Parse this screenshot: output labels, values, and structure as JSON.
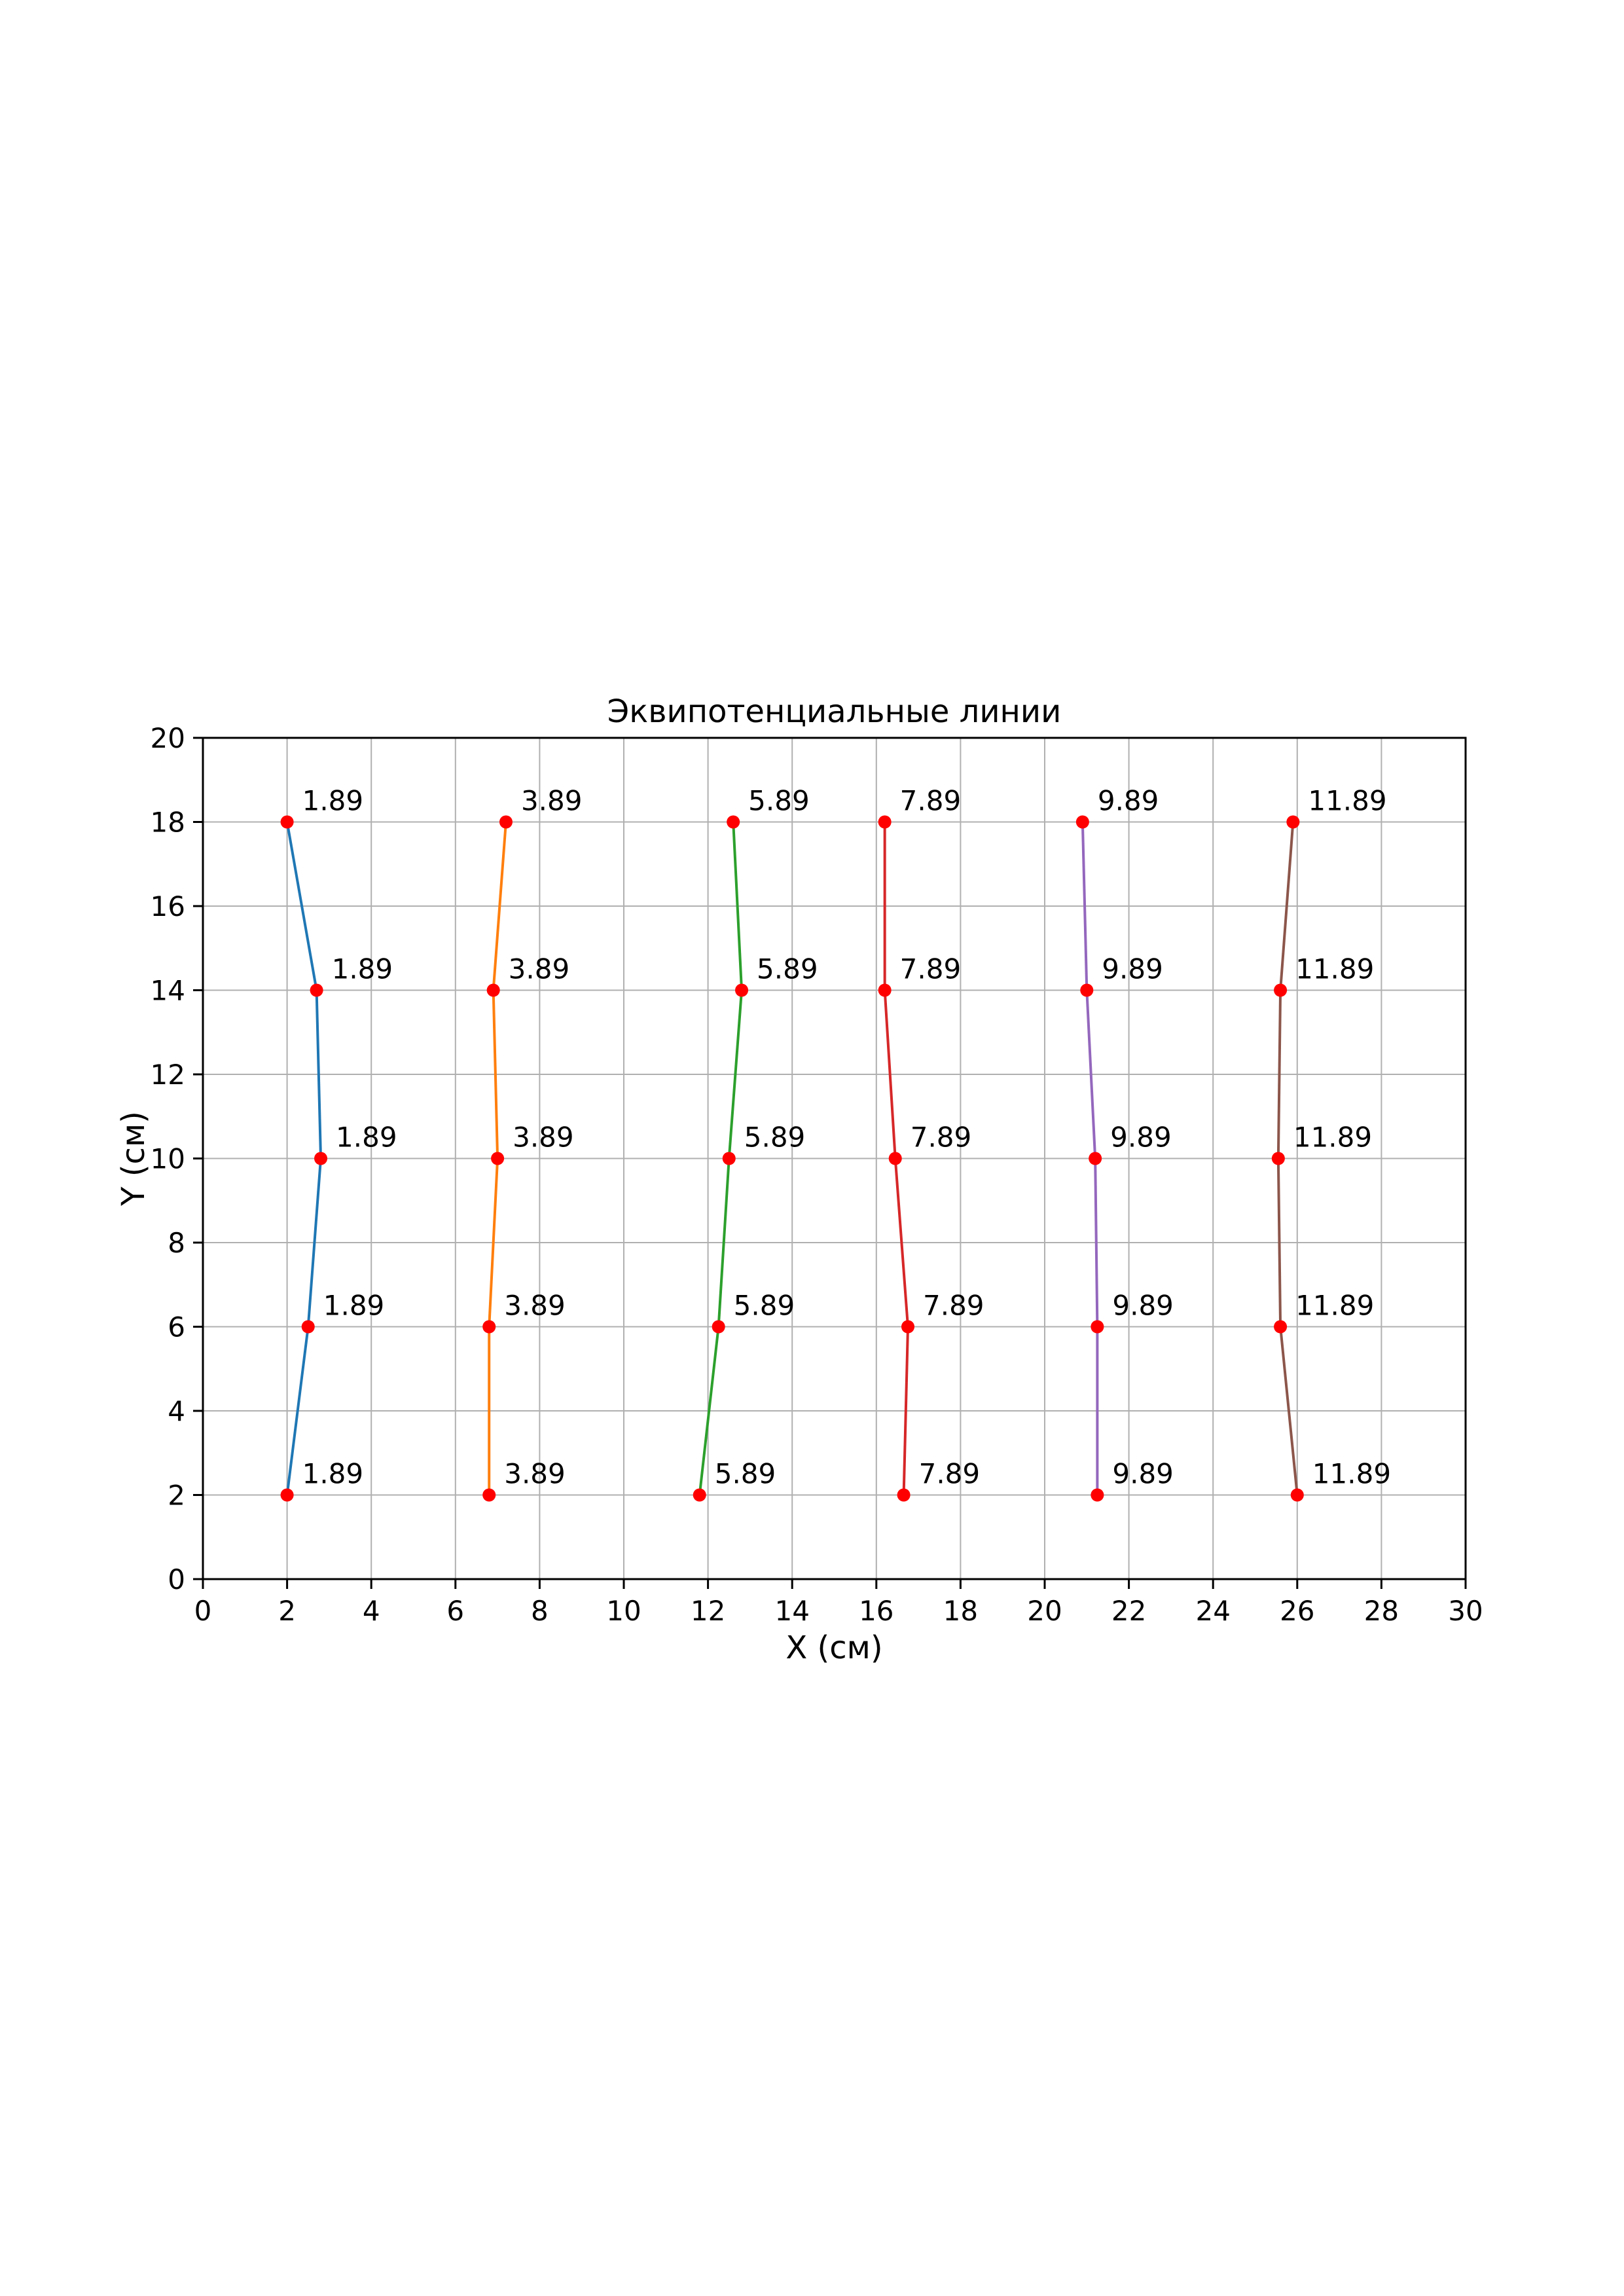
{
  "page": {
    "background": "#ffffff"
  },
  "chart_data": {
    "type": "line",
    "title": "Эквипотенциальные линии",
    "xlabel": "X (см)",
    "ylabel": "Y (см)",
    "xlim": [
      0,
      30
    ],
    "ylim": [
      0,
      20
    ],
    "xticks": [
      0,
      2,
      4,
      6,
      8,
      10,
      12,
      14,
      16,
      18,
      20,
      22,
      24,
      26,
      28,
      30
    ],
    "yticks": [
      0,
      2,
      4,
      6,
      8,
      10,
      12,
      14,
      16,
      18,
      20
    ],
    "grid": true,
    "grid_color": "#b0b0b0",
    "spine_color": "#000000",
    "marker_color": "#ff0000",
    "legend": "none",
    "annotate_each_point": true,
    "series": [
      {
        "label": "1.89",
        "color": "#1f77b4",
        "x": [
          2.0,
          2.7,
          2.8,
          2.5,
          2.0
        ],
        "y": [
          18,
          14,
          10,
          6,
          2
        ]
      },
      {
        "label": "3.89",
        "color": "#ff7f0e",
        "x": [
          7.2,
          6.9,
          7.0,
          6.8,
          6.8
        ],
        "y": [
          18,
          14,
          10,
          6,
          2
        ]
      },
      {
        "label": "5.89",
        "color": "#2ca02c",
        "x": [
          12.6,
          12.8,
          12.5,
          12.25,
          11.8
        ],
        "y": [
          18,
          14,
          10,
          6,
          2
        ]
      },
      {
        "label": "7.89",
        "color": "#d62728",
        "x": [
          16.2,
          16.2,
          16.45,
          16.75,
          16.65
        ],
        "y": [
          18,
          14,
          10,
          6,
          2
        ]
      },
      {
        "label": "9.89",
        "color": "#9467bd",
        "x": [
          20.9,
          21.0,
          21.2,
          21.25,
          21.25
        ],
        "y": [
          18,
          14,
          10,
          6,
          2
        ]
      },
      {
        "label": "11.89",
        "color": "#8c564b",
        "x": [
          25.9,
          25.6,
          25.55,
          25.6,
          26.0
        ],
        "y": [
          18,
          14,
          10,
          6,
          2
        ]
      }
    ]
  }
}
